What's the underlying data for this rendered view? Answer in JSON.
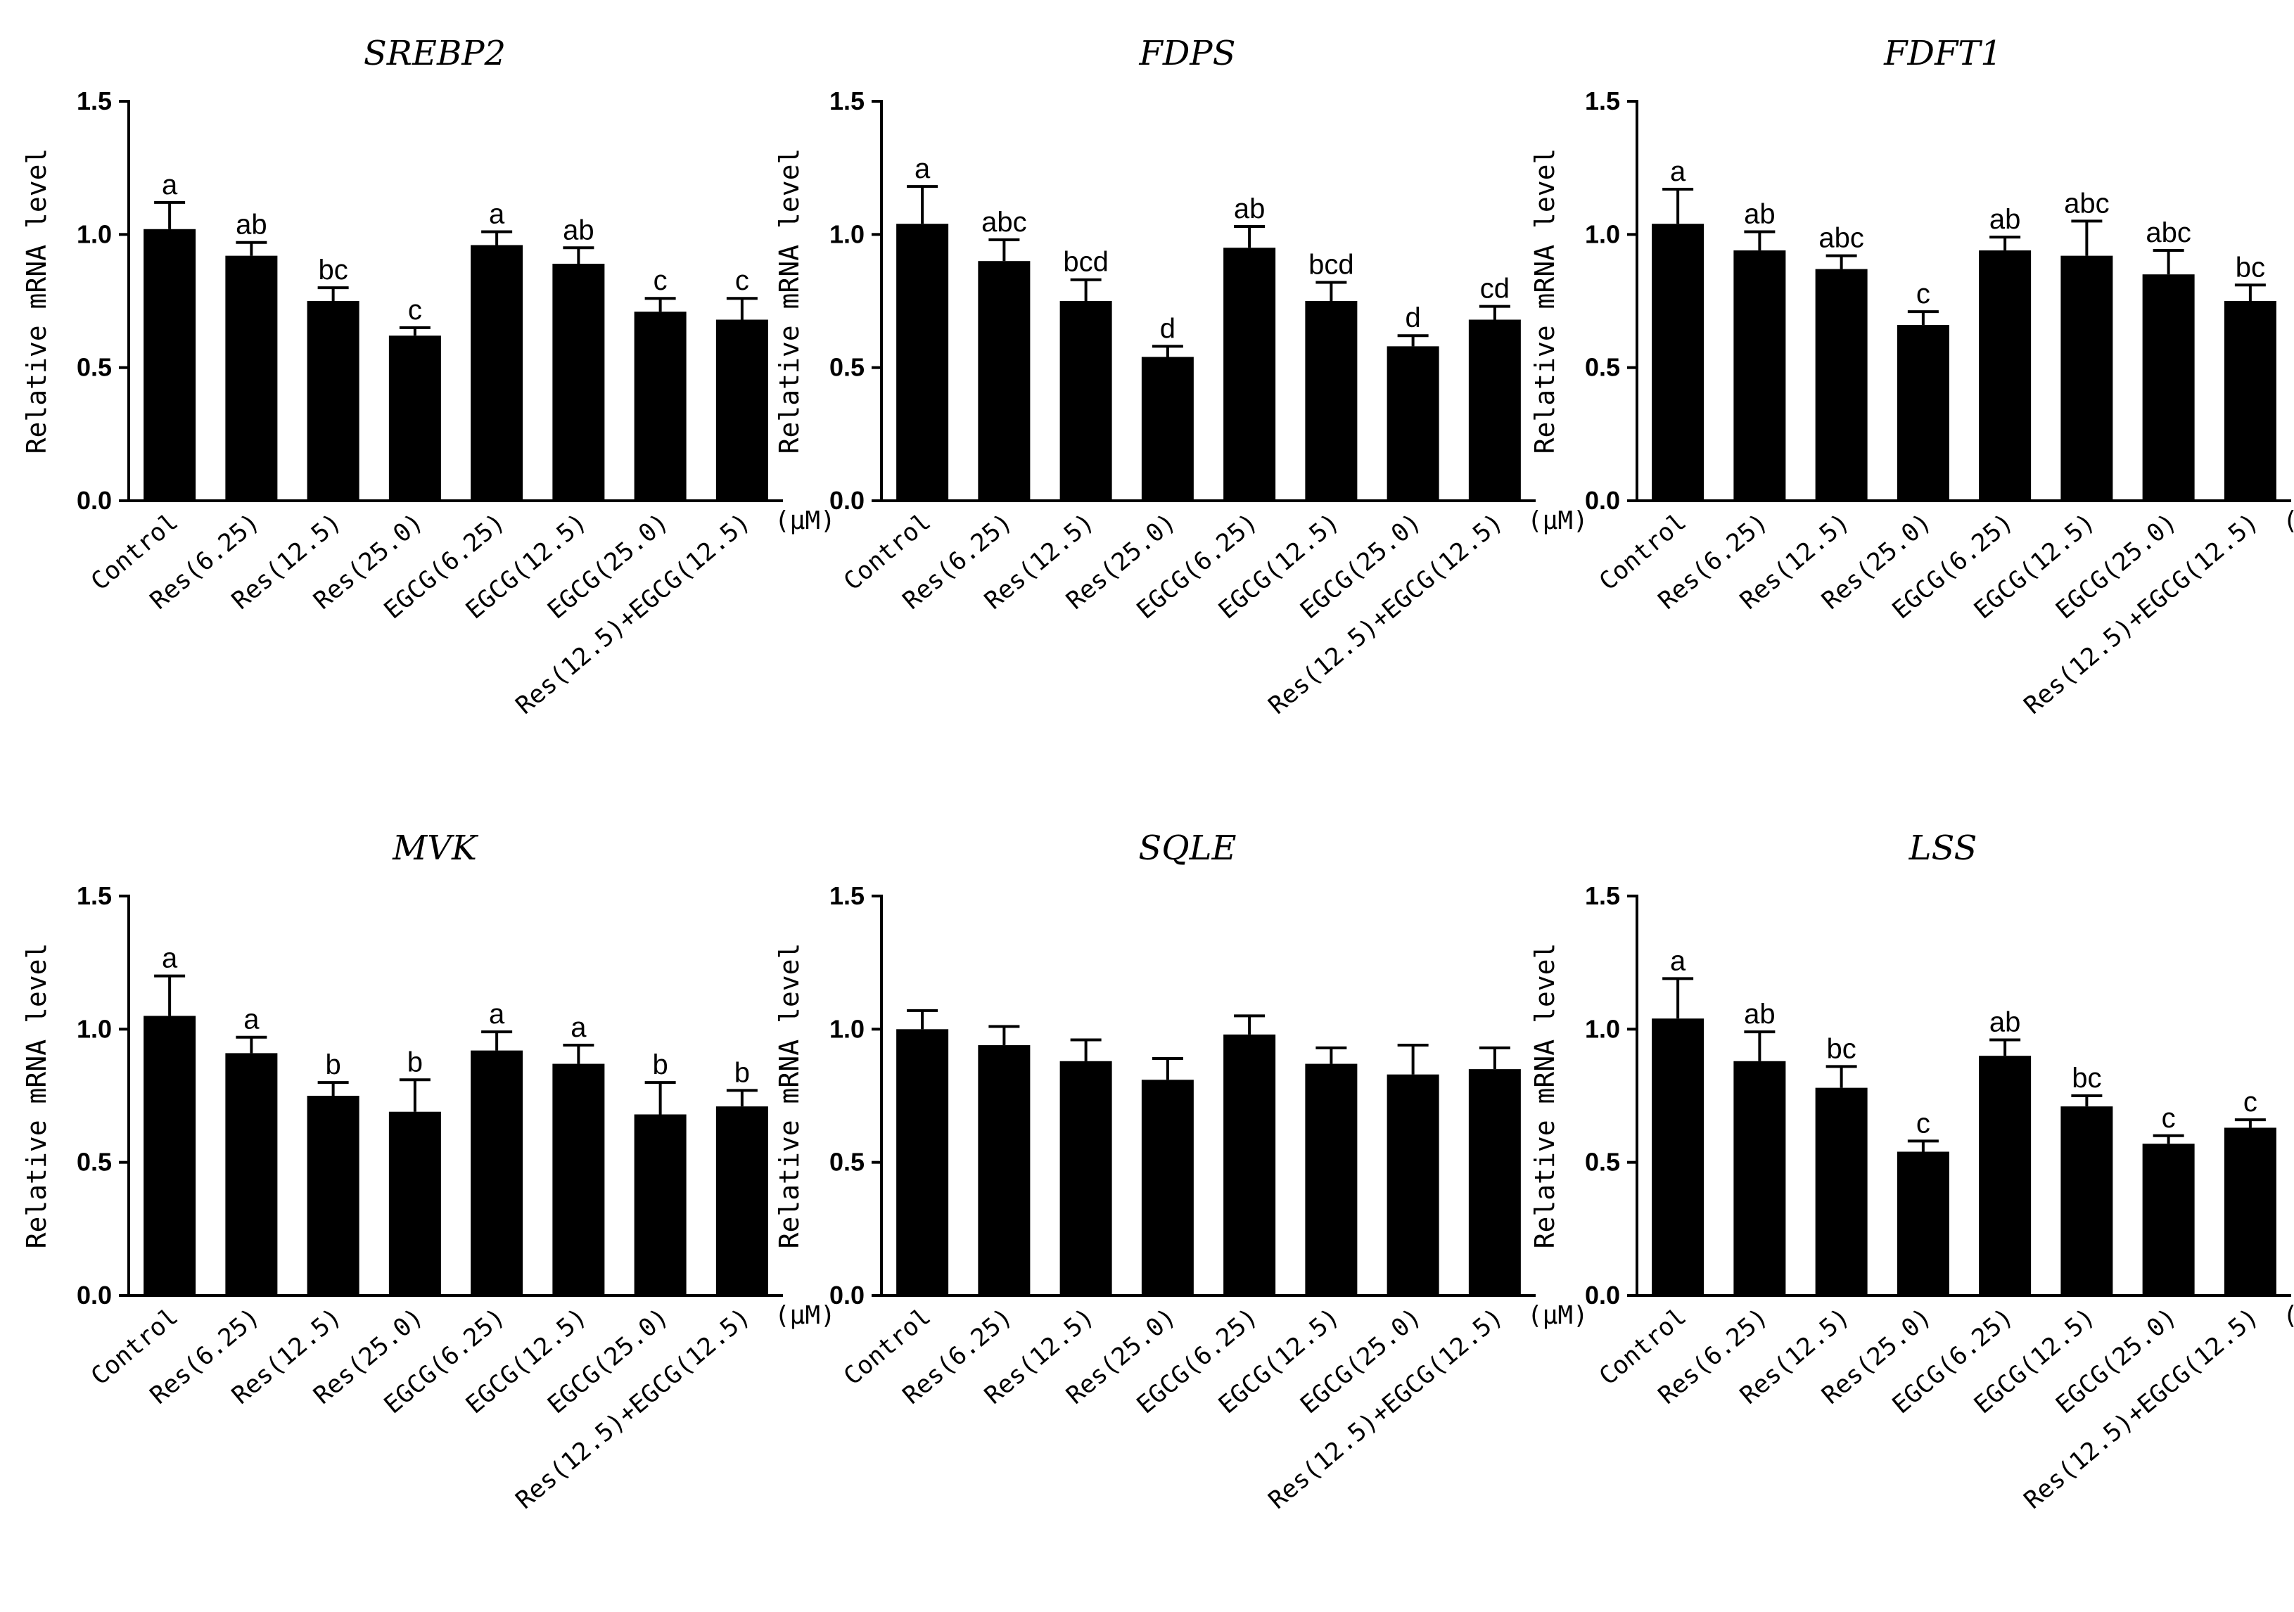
{
  "chart_data": [
    {
      "type": "bar",
      "title": "SREBP2",
      "ylabel": "Relative mRNA level",
      "ylim": [
        0,
        1.5
      ],
      "yticks": [
        "0.0",
        "0.5",
        "1.0",
        "1.5"
      ],
      "unit_label": "(μM)",
      "categories": [
        "Control",
        "Res(6.25)",
        "Res(12.5)",
        "Res(25.0)",
        "EGCG(6.25)",
        "EGCG(12.5)",
        "EGCG(25.0)",
        "Res(12.5)+EGCG(12.5)"
      ],
      "values": [
        1.02,
        0.92,
        0.75,
        0.62,
        0.96,
        0.89,
        0.71,
        0.68
      ],
      "errors": [
        0.1,
        0.05,
        0.05,
        0.03,
        0.05,
        0.06,
        0.05,
        0.08
      ],
      "labels": [
        "a",
        "ab",
        "bc",
        "c",
        "a",
        "ab",
        "c",
        "c"
      ]
    },
    {
      "type": "bar",
      "title": "FDPS",
      "ylabel": "Relative mRNA level",
      "ylim": [
        0,
        1.5
      ],
      "yticks": [
        "0.0",
        "0.5",
        "1.0",
        "1.5"
      ],
      "unit_label": "(μM)",
      "categories": [
        "Control",
        "Res(6.25)",
        "Res(12.5)",
        "Res(25.0)",
        "EGCG(6.25)",
        "EGCG(12.5)",
        "EGCG(25.0)",
        "Res(12.5)+EGCG(12.5)"
      ],
      "values": [
        1.04,
        0.9,
        0.75,
        0.54,
        0.95,
        0.75,
        0.58,
        0.68
      ],
      "errors": [
        0.14,
        0.08,
        0.08,
        0.04,
        0.08,
        0.07,
        0.04,
        0.05
      ],
      "labels": [
        "a",
        "abc",
        "bcd",
        "d",
        "ab",
        "bcd",
        "d",
        "cd"
      ]
    },
    {
      "type": "bar",
      "title": "FDFT1",
      "ylabel": "Relative mRNA level",
      "ylim": [
        0,
        1.5
      ],
      "yticks": [
        "0.0",
        "0.5",
        "1.0",
        "1.5"
      ],
      "unit_label": "(μM)",
      "categories": [
        "Control",
        "Res(6.25)",
        "Res(12.5)",
        "Res(25.0)",
        "EGCG(6.25)",
        "EGCG(12.5)",
        "EGCG(25.0)",
        "Res(12.5)+EGCG(12.5)"
      ],
      "values": [
        1.04,
        0.94,
        0.87,
        0.66,
        0.94,
        0.92,
        0.85,
        0.75
      ],
      "errors": [
        0.13,
        0.07,
        0.05,
        0.05,
        0.05,
        0.13,
        0.09,
        0.06
      ],
      "labels": [
        "a",
        "ab",
        "abc",
        "c",
        "ab",
        "abc",
        "abc",
        "bc"
      ]
    },
    {
      "type": "bar",
      "title": "MVK",
      "ylabel": "Relative mRNA level",
      "ylim": [
        0,
        1.5
      ],
      "yticks": [
        "0.0",
        "0.5",
        "1.0",
        "1.5"
      ],
      "unit_label": "(μM)",
      "categories": [
        "Control",
        "Res(6.25)",
        "Res(12.5)",
        "Res(25.0)",
        "EGCG(6.25)",
        "EGCG(12.5)",
        "EGCG(25.0)",
        "Res(12.5)+EGCG(12.5)"
      ],
      "values": [
        1.05,
        0.91,
        0.75,
        0.69,
        0.92,
        0.87,
        0.68,
        0.71
      ],
      "errors": [
        0.15,
        0.06,
        0.05,
        0.12,
        0.07,
        0.07,
        0.12,
        0.06
      ],
      "labels": [
        "a",
        "a",
        "b",
        "b",
        "a",
        "a",
        "b",
        "b"
      ]
    },
    {
      "type": "bar",
      "title": "SQLE",
      "ylabel": "Relative mRNA level",
      "ylim": [
        0,
        1.5
      ],
      "yticks": [
        "0.0",
        "0.5",
        "1.0",
        "1.5"
      ],
      "unit_label": "(μM)",
      "categories": [
        "Control",
        "Res(6.25)",
        "Res(12.5)",
        "Res(25.0)",
        "EGCG(6.25)",
        "EGCG(12.5)",
        "EGCG(25.0)",
        "Res(12.5)+EGCG(12.5)"
      ],
      "values": [
        1.0,
        0.94,
        0.88,
        0.81,
        0.98,
        0.87,
        0.83,
        0.85
      ],
      "errors": [
        0.07,
        0.07,
        0.08,
        0.08,
        0.07,
        0.06,
        0.11,
        0.08
      ],
      "labels": [
        "",
        "",
        "",
        "",
        "",
        "",
        "",
        ""
      ]
    },
    {
      "type": "bar",
      "title": "LSS",
      "ylabel": "Relative mRNA level",
      "ylim": [
        0,
        1.5
      ],
      "yticks": [
        "0.0",
        "0.5",
        "1.0",
        "1.5"
      ],
      "unit_label": "(μM)",
      "categories": [
        "Control",
        "Res(6.25)",
        "Res(12.5)",
        "Res(25.0)",
        "EGCG(6.25)",
        "EGCG(12.5)",
        "EGCG(25.0)",
        "Res(12.5)+EGCG(12.5)"
      ],
      "values": [
        1.04,
        0.88,
        0.78,
        0.54,
        0.9,
        0.71,
        0.57,
        0.63
      ],
      "errors": [
        0.15,
        0.11,
        0.08,
        0.04,
        0.06,
        0.04,
        0.03,
        0.03
      ],
      "labels": [
        "a",
        "ab",
        "bc",
        "c",
        "ab",
        "bc",
        "c",
        "c"
      ]
    }
  ]
}
